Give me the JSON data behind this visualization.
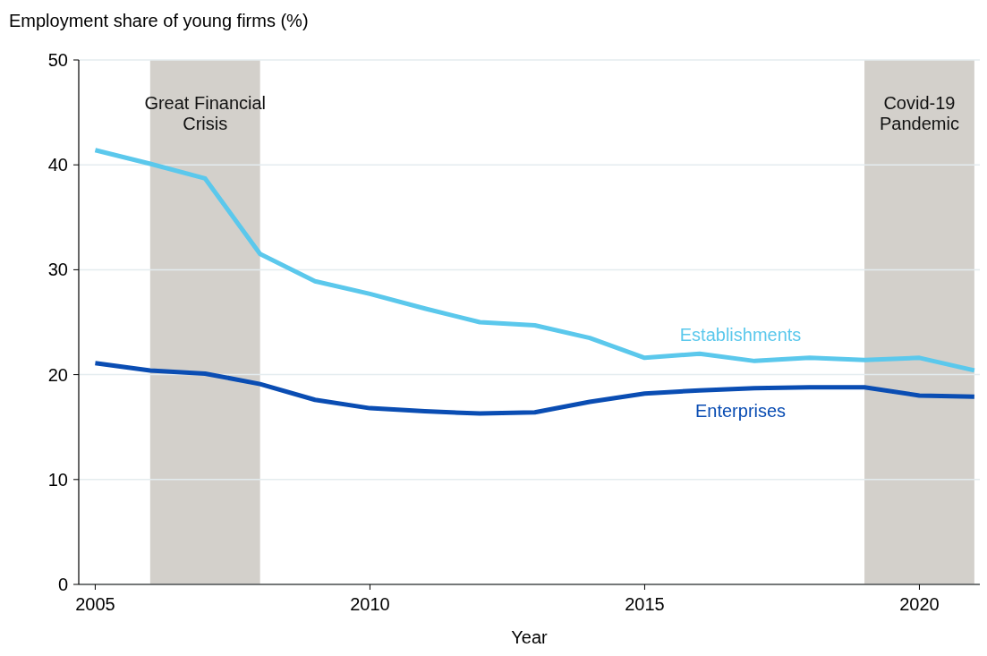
{
  "chart_data": {
    "type": "line",
    "ylabel": "Employment share of young firms (%)",
    "xlabel": "Year",
    "x": [
      2005,
      2006,
      2007,
      2008,
      2009,
      2010,
      2011,
      2012,
      2013,
      2014,
      2015,
      2016,
      2017,
      2018,
      2019,
      2020,
      2021
    ],
    "series": [
      {
        "name": "Establishments",
        "color": "#5bc8ec",
        "values": [
          41.4,
          40.1,
          38.7,
          31.5,
          28.9,
          27.7,
          26.3,
          25.0,
          24.7,
          23.5,
          21.6,
          22.0,
          21.3,
          21.6,
          21.4,
          21.6,
          20.4
        ]
      },
      {
        "name": "Enterprises",
        "color": "#0a4db3",
        "values": [
          21.1,
          20.4,
          20.1,
          19.1,
          17.6,
          16.8,
          16.5,
          16.3,
          16.4,
          17.4,
          18.2,
          18.5,
          18.7,
          18.8,
          18.8,
          18.0,
          17.9
        ]
      }
    ],
    "xlim": [
      2004.7,
      2021.1
    ],
    "xticks": [
      2005,
      2010,
      2015,
      2020
    ],
    "ylim": [
      0,
      50
    ],
    "yticks": [
      0,
      10,
      20,
      30,
      40,
      50
    ],
    "bands": [
      {
        "axis": "x",
        "from": 2006,
        "to": 2008,
        "label": "Great Financial Crisis",
        "color": "#d3d0cb"
      },
      {
        "axis": "x",
        "from": 2019,
        "to": 2021,
        "label": "Covid-19 Pandemic",
        "color": "#d3d0cb"
      }
    ],
    "grid": "y",
    "line_style": "solid",
    "marker": "none"
  }
}
